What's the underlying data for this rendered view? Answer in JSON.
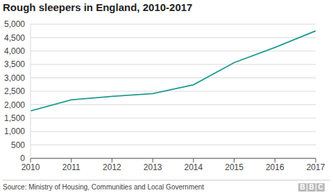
{
  "chart_data": {
    "type": "line",
    "title": "Rough sleepers in England, 2010-2017",
    "x": [
      2010,
      2011,
      2012,
      2013,
      2014,
      2015,
      2016,
      2017
    ],
    "values": [
      1768,
      2181,
      2309,
      2414,
      2744,
      3569,
      4134,
      4751
    ],
    "color": "#1a9b8f",
    "xlim": [
      2010,
      2017
    ],
    "xticks": [
      2010,
      2011,
      2012,
      2013,
      2014,
      2015,
      2016,
      2017
    ],
    "ylim": [
      0,
      5000
    ],
    "yticks": [
      0,
      500,
      {
        "value": 1000,
        "label": "1,000"
      },
      {
        "value": 1500,
        "label": "1,500"
      },
      {
        "value": 2000,
        "label": "2,000"
      },
      {
        "value": 2500,
        "label": "2,500"
      },
      {
        "value": 3000,
        "label": "3,000"
      },
      {
        "value": 3500,
        "label": "3,500"
      },
      {
        "value": 4000,
        "label": "4,000"
      },
      {
        "value": 4500,
        "label": "4,500"
      },
      {
        "value": 5000,
        "label": "5,000"
      }
    ],
    "grid": true,
    "source": "Source: Ministry of Housing, Communities and Local Government",
    "logo": "BBC"
  }
}
